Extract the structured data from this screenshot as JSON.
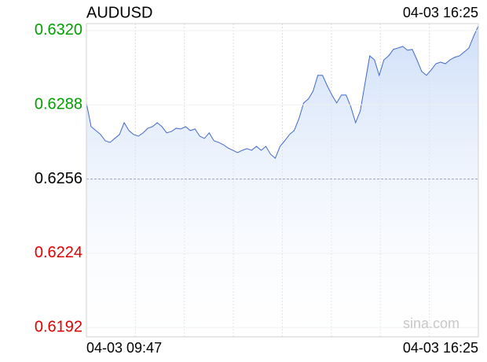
{
  "chart_data": {
    "type": "line",
    "title": "AUDUSD",
    "timestamp": "04-03 16:25",
    "watermark": "sina.com",
    "x_start_label": "04-03 09:47",
    "x_end_label": "04-03 16:25",
    "color": "#4169c8",
    "fill": "#c9dbf8",
    "up_color": "#00a000",
    "down_color": "#e00000",
    "baseline": 0.6256,
    "ylim": [
      0.6188,
      0.6323
    ],
    "yticks": [
      {
        "value": 0.632,
        "label": "0.6320"
      },
      0.6288,
      0.6256,
      0.6224,
      0.6192
    ],
    "values": [
      0.62888,
      0.62786,
      0.62769,
      0.62752,
      0.62725,
      0.62718,
      0.62735,
      0.62752,
      0.62803,
      0.62769,
      0.62752,
      0.62745,
      0.62759,
      0.62779,
      0.62786,
      0.62803,
      0.62786,
      0.62759,
      0.62765,
      0.62779,
      0.62776,
      0.62786,
      0.62769,
      0.62776,
      0.62745,
      0.62735,
      0.62759,
      0.62725,
      0.62718,
      0.62708,
      0.62694,
      0.62684,
      0.62674,
      0.62684,
      0.62691,
      0.62684,
      0.62701,
      0.62684,
      0.62701,
      0.62667,
      0.6265,
      0.62701,
      0.62725,
      0.62752,
      0.62769,
      0.6282,
      0.62888,
      0.62905,
      0.62939,
      0.63007,
      0.63007,
      0.62962,
      0.62922,
      0.62888,
      0.62922,
      0.62922,
      0.62871,
      0.62803,
      0.62854,
      0.62973,
      0.63091,
      0.63074,
      0.63007,
      0.63074,
      0.63091,
      0.63119,
      0.63125,
      0.63132,
      0.63115,
      0.63119,
      0.63074,
      0.63024,
      0.63007,
      0.6303,
      0.63057,
      0.63064,
      0.63057,
      0.63074,
      0.63085,
      0.63091,
      0.63108,
      0.63125,
      0.63176,
      0.6322
    ]
  }
}
